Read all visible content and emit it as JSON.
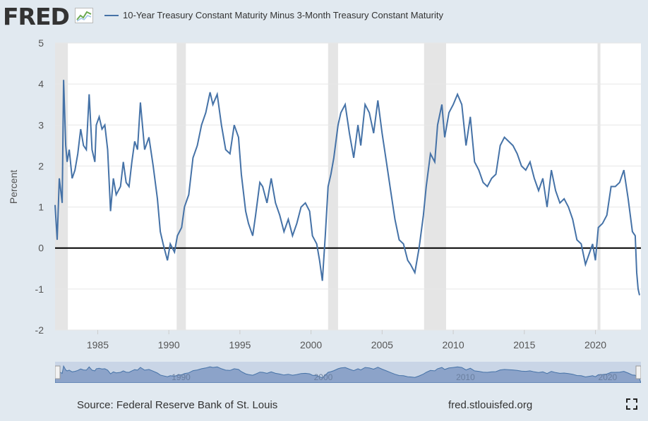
{
  "header": {
    "logo_text": "FRED",
    "logo_icon": "chart-line-icon",
    "legend_label": "10-Year Treasury Constant Maturity Minus 3-Month Treasury Constant Maturity"
  },
  "footer": {
    "source": "Source: Federal Reserve Bank of St. Louis",
    "url": "fred.stlouisfed.org",
    "expand_icon": "fullscreen-icon"
  },
  "colors": {
    "series": "#4572a7",
    "recession": "#e5e5e5",
    "zero_line": "#000000",
    "background": "#e1e9f0",
    "navigator": "#a0b5d4"
  },
  "chart_data": {
    "type": "line",
    "ylabel": "Percent",
    "xlabel": "",
    "ylim": [
      -2,
      5
    ],
    "xlim": [
      1982.0,
      2023.2
    ],
    "yticks": [
      -2,
      -1,
      0,
      1,
      2,
      3,
      4,
      5
    ],
    "xticks": [
      1985,
      1990,
      1995,
      2000,
      2005,
      2010,
      2015,
      2020
    ],
    "navigator_labels": [
      "1990",
      "2000",
      "2010",
      "2020"
    ],
    "grid": "horizontal",
    "legend": "top",
    "zero_line": 0,
    "recessions": [
      [
        1981.55,
        1982.9
      ],
      [
        1990.55,
        1991.2
      ],
      [
        2001.2,
        2001.9
      ],
      [
        2007.95,
        2009.5
      ],
      [
        2020.15,
        2020.35
      ]
    ],
    "series": [
      {
        "name": "10-Year Treasury Constant Maturity Minus 3-Month Treasury Constant Maturity",
        "x": [
          1982.0,
          1982.15,
          1982.3,
          1982.5,
          1982.6,
          1982.75,
          1982.85,
          1983.0,
          1983.2,
          1983.4,
          1983.6,
          1983.8,
          1984.0,
          1984.2,
          1984.4,
          1984.6,
          1984.8,
          1984.9,
          1985.1,
          1985.3,
          1985.5,
          1985.7,
          1985.9,
          1986.1,
          1986.3,
          1986.6,
          1986.8,
          1987.0,
          1987.2,
          1987.4,
          1987.6,
          1987.8,
          1988.0,
          1988.3,
          1988.6,
          1988.9,
          1989.2,
          1989.4,
          1989.6,
          1989.9,
          1990.1,
          1990.4,
          1990.6,
          1990.9,
          1991.1,
          1991.4,
          1991.7,
          1992.0,
          1992.3,
          1992.6,
          1992.9,
          1993.1,
          1993.4,
          1993.7,
          1994.0,
          1994.3,
          1994.6,
          1994.9,
          1995.1,
          1995.4,
          1995.6,
          1995.9,
          1996.1,
          1996.4,
          1996.6,
          1996.9,
          1997.2,
          1997.5,
          1997.8,
          1998.1,
          1998.4,
          1998.7,
          1999.0,
          1999.3,
          1999.6,
          1999.9,
          2000.1,
          2000.4,
          2000.6,
          2000.8,
          2001.0,
          2001.2,
          2001.4,
          2001.6,
          2001.9,
          2002.1,
          2002.4,
          2002.7,
          2003.0,
          2003.3,
          2003.5,
          2003.8,
          2004.1,
          2004.4,
          2004.7,
          2005.0,
          2005.3,
          2005.6,
          2005.9,
          2006.2,
          2006.5,
          2006.8,
          2007.0,
          2007.3,
          2007.6,
          2007.9,
          2008.1,
          2008.4,
          2008.7,
          2008.9,
          2009.2,
          2009.4,
          2009.7,
          2010.0,
          2010.3,
          2010.6,
          2010.9,
          2011.2,
          2011.5,
          2011.8,
          2012.1,
          2012.4,
          2012.7,
          2013.0,
          2013.3,
          2013.6,
          2013.9,
          2014.2,
          2014.5,
          2014.8,
          2015.1,
          2015.4,
          2015.7,
          2016.0,
          2016.3,
          2016.6,
          2016.9,
          2017.2,
          2017.5,
          2017.8,
          2018.1,
          2018.4,
          2018.7,
          2019.0,
          2019.3,
          2019.6,
          2019.8,
          2020.0,
          2020.2,
          2020.5,
          2020.8,
          2021.1,
          2021.4,
          2021.7,
          2022.0,
          2022.3,
          2022.6,
          2022.8,
          2022.9,
          2023.0,
          2023.1
        ],
        "values": [
          1.05,
          0.2,
          1.7,
          1.1,
          4.1,
          2.5,
          2.1,
          2.4,
          1.7,
          1.9,
          2.3,
          2.9,
          2.5,
          2.4,
          3.75,
          2.4,
          2.1,
          3.0,
          3.2,
          2.9,
          3.0,
          2.4,
          0.9,
          1.7,
          1.3,
          1.5,
          2.1,
          1.6,
          1.5,
          2.1,
          2.6,
          2.4,
          3.55,
          2.4,
          2.7,
          2.0,
          1.2,
          0.4,
          0.1,
          -0.3,
          0.1,
          -0.1,
          0.3,
          0.5,
          1.0,
          1.3,
          2.2,
          2.5,
          3.0,
          3.3,
          3.8,
          3.5,
          3.75,
          3.0,
          2.4,
          2.3,
          3.0,
          2.7,
          1.8,
          0.9,
          0.6,
          0.3,
          0.8,
          1.6,
          1.5,
          1.1,
          1.7,
          1.1,
          0.8,
          0.4,
          0.7,
          0.3,
          0.6,
          1.0,
          1.1,
          0.9,
          0.3,
          0.1,
          -0.3,
          -0.8,
          0.3,
          1.5,
          1.8,
          2.2,
          3.0,
          3.3,
          3.5,
          2.8,
          2.2,
          3.0,
          2.5,
          3.5,
          3.3,
          2.8,
          3.6,
          2.8,
          2.1,
          1.4,
          0.7,
          0.2,
          0.1,
          -0.3,
          -0.4,
          -0.6,
          0.0,
          0.8,
          1.5,
          2.3,
          2.1,
          3.0,
          3.5,
          2.7,
          3.3,
          3.5,
          3.75,
          3.5,
          2.5,
          3.2,
          2.1,
          1.9,
          1.6,
          1.5,
          1.7,
          1.8,
          2.5,
          2.7,
          2.6,
          2.5,
          2.3,
          2.0,
          1.9,
          2.1,
          1.7,
          1.4,
          1.7,
          1.0,
          1.9,
          1.4,
          1.1,
          1.2,
          1.0,
          0.7,
          0.2,
          0.1,
          -0.4,
          -0.1,
          0.1,
          -0.3,
          0.5,
          0.6,
          0.8,
          1.5,
          1.5,
          1.6,
          1.9,
          1.2,
          0.4,
          0.3,
          -0.6,
          -1.0,
          -1.15
        ]
      }
    ]
  }
}
